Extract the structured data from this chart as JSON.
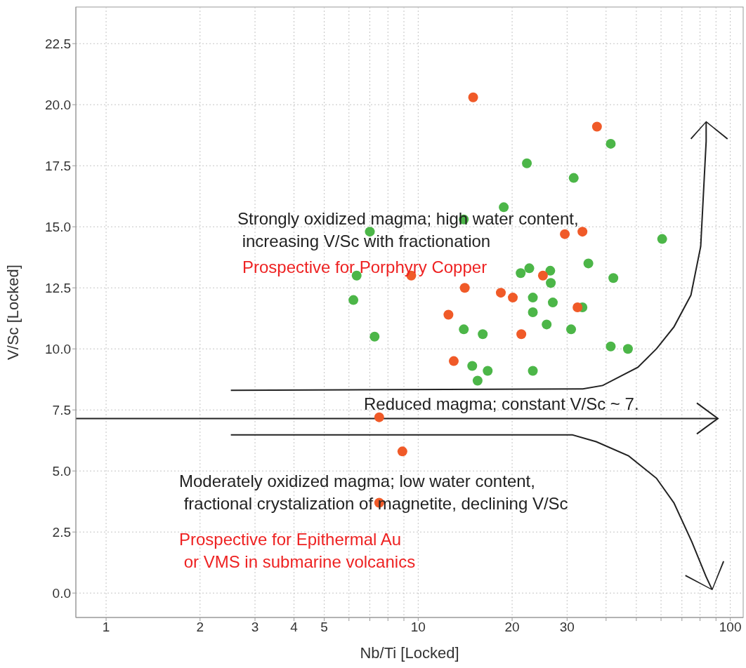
{
  "chart_data": {
    "type": "scatter",
    "xlabel": "Nb/Ti [Locked]",
    "ylabel": "V/Sc [Locked]",
    "log": "x",
    "xlim": [
      0.8,
      110
    ],
    "xticks": [
      1,
      2,
      3,
      4,
      5,
      {
        "value": 6,
        "label": null
      },
      {
        "value": 7,
        "label": null
      },
      {
        "value": 8,
        "label": null
      },
      {
        "value": 9,
        "label": null
      },
      10,
      20,
      30,
      {
        "value": 40,
        "label": null
      },
      {
        "value": 50,
        "label": null
      },
      {
        "value": 60,
        "label": null
      },
      {
        "value": 70,
        "label": null
      },
      {
        "value": 80,
        "label": null
      },
      {
        "value": 90,
        "label": null
      },
      100
    ],
    "ylim": [
      -1,
      24
    ],
    "yticks": [
      {
        "value": 0,
        "label": "0.0"
      },
      2.5,
      {
        "value": 5,
        "label": "5.0"
      },
      7.5,
      {
        "value": 10,
        "label": "10.0"
      },
      12.5,
      {
        "value": 15,
        "label": "15.0"
      },
      17.5,
      {
        "value": 20,
        "label": "20.0"
      },
      22.5
    ],
    "grid": true,
    "marker": "circle",
    "series": [
      {
        "color": "#4cb648",
        "x": [
          41.4,
          22.3,
          31.5,
          18.8,
          14.0,
          7.0,
          60.5,
          6.35,
          6.2,
          7.25,
          14.0,
          16.1,
          14.9,
          16.7,
          15.5,
          21.3,
          22.7,
          26.5,
          26.6,
          33.6,
          35.1,
          42.2,
          23.3,
          27.0,
          23.3,
          25.8,
          30.9,
          41.4,
          47.0,
          23.3
        ],
        "values": [
          18.4,
          17.6,
          17.0,
          15.8,
          15.3,
          14.8,
          14.5,
          13.0,
          12.0,
          10.5,
          10.8,
          10.6,
          9.3,
          9.1,
          8.7,
          13.1,
          13.3,
          13.2,
          12.7,
          11.7,
          13.5,
          12.9,
          12.1,
          11.9,
          11.5,
          11.0,
          10.8,
          10.1,
          10.0,
          9.1
        ]
      },
      {
        "color": "#f05a28",
        "x": [
          15.0,
          37.4,
          29.5,
          33.6,
          9.5,
          14.1,
          18.4,
          20.1,
          25.1,
          12.5,
          32.4,
          21.4,
          13.0,
          7.5,
          8.9,
          7.5
        ],
        "values": [
          20.3,
          19.1,
          14.7,
          14.8,
          13.0,
          12.5,
          12.3,
          12.1,
          13.0,
          11.4,
          11.7,
          10.6,
          9.5,
          7.2,
          5.8,
          3.7
        ]
      }
    ],
    "ref_lines": [
      {
        "axis": "y",
        "value": 7.15,
        "label": "Reduced magma; constant V/Sc ~ 7.",
        "color": "#222222"
      }
    ],
    "annotations": [
      "Strongly oxidized magma; high water content,\n increasing V/Sc with fractionation",
      "Prospective for Porphyry Copper",
      "Moderately oxidized magma; low water content,\n fractional crystalization of magnetite, declining V/Sc",
      "Prospective for Epithermal Au\n or VMS in submarine volcanics"
    ]
  }
}
